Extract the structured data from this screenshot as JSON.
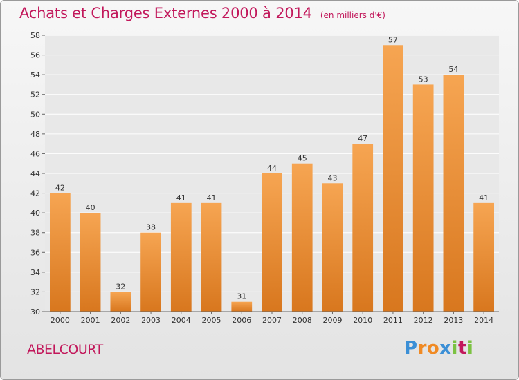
{
  "title": "Achats et Charges Externes 2000 à 2014",
  "unit": "(en milliers d'€)",
  "commune": "ABELCOURT",
  "logo": {
    "letters": [
      "P",
      "r",
      "o",
      "x",
      "i",
      "t",
      "i"
    ],
    "colors": [
      "#3b8fd6",
      "#f08a24",
      "#f08a24",
      "#3b8fd6",
      "#7cc242",
      "#c2185b",
      "#7cc242"
    ]
  },
  "colors": {
    "title": "#c2185b",
    "bar_top": "#f6a552",
    "bar_bottom": "#d8771e",
    "grid": "#ffffff",
    "text": "#333333"
  },
  "chart_data": {
    "type": "bar",
    "categories": [
      "2000",
      "2001",
      "2002",
      "2003",
      "2004",
      "2005",
      "2006",
      "2007",
      "2008",
      "2009",
      "2010",
      "2011",
      "2012",
      "2013",
      "2014"
    ],
    "values": [
      42,
      40,
      32,
      38,
      41,
      41,
      31,
      44,
      45,
      43,
      47,
      57,
      53,
      54,
      41
    ],
    "title": "Achats et Charges Externes 2000 à 2014",
    "subtitle": "(en milliers d'€)",
    "ylim": [
      30,
      58
    ],
    "yticks": [
      30,
      32,
      34,
      36,
      38,
      40,
      42,
      44,
      46,
      48,
      50,
      52,
      54,
      56,
      58
    ],
    "grid": true,
    "data_labels": true
  }
}
